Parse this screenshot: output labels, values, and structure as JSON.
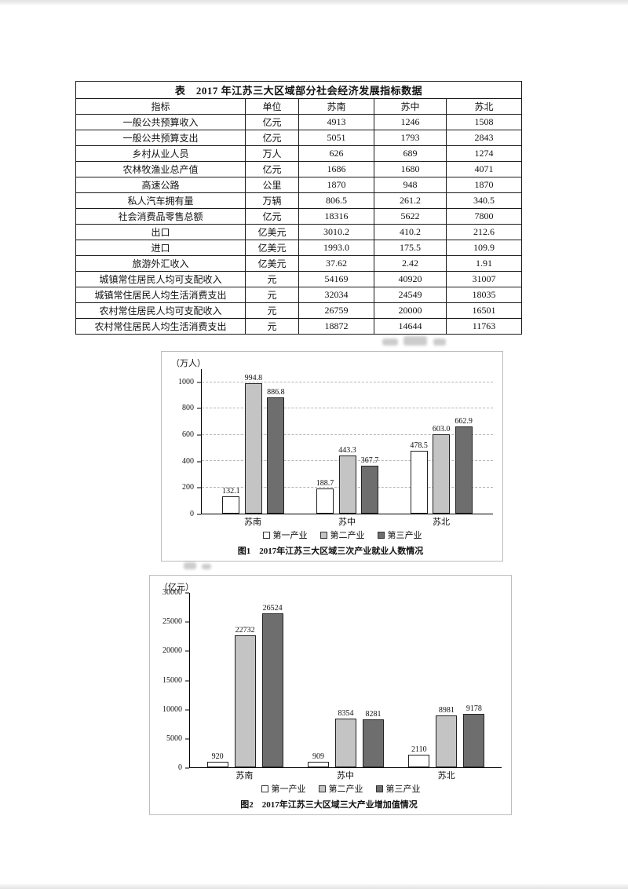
{
  "table": {
    "title": "表　2017 年江苏三大区域部分社会经济发展指标数据",
    "headers": [
      "指标",
      "单位",
      "苏南",
      "苏中",
      "苏北"
    ],
    "rows": [
      {
        "indicator": "一般公共预算收入",
        "unit": "亿元",
        "values": [
          "4913",
          "1246",
          "1508"
        ]
      },
      {
        "indicator": "一般公共预算支出",
        "unit": "亿元",
        "values": [
          "5051",
          "1793",
          "2843"
        ]
      },
      {
        "indicator": "乡村从业人员",
        "unit": "万人",
        "values": [
          "626",
          "689",
          "1274"
        ]
      },
      {
        "indicator": "农林牧渔业总产值",
        "unit": "亿元",
        "values": [
          "1686",
          "1680",
          "4071"
        ]
      },
      {
        "indicator": "高速公路",
        "unit": "公里",
        "values": [
          "1870",
          "948",
          "1870"
        ]
      },
      {
        "indicator": "私人汽车拥有量",
        "unit": "万辆",
        "values": [
          "806.5",
          "261.2",
          "340.5"
        ]
      },
      {
        "indicator": "社会消费品零售总额",
        "unit": "亿元",
        "values": [
          "18316",
          "5622",
          "7800"
        ]
      },
      {
        "indicator": "出口",
        "unit": "亿美元",
        "values": [
          "3010.2",
          "410.2",
          "212.6"
        ]
      },
      {
        "indicator": "进口",
        "unit": "亿美元",
        "values": [
          "1993.0",
          "175.5",
          "109.9"
        ]
      },
      {
        "indicator": "旅游外汇收入",
        "unit": "亿美元",
        "values": [
          "37.62",
          "2.42",
          "1.91"
        ]
      },
      {
        "indicator": "城镇常住居民人均可支配收入",
        "unit": "元",
        "values": [
          "54169",
          "40920",
          "31007"
        ]
      },
      {
        "indicator": "城镇常住居民人均生活消费支出",
        "unit": "元",
        "values": [
          "32034",
          "24549",
          "18035"
        ]
      },
      {
        "indicator": "农村常住居民人均可支配收入",
        "unit": "元",
        "values": [
          "26759",
          "20000",
          "16501"
        ]
      },
      {
        "indicator": "农村常住居民人均生活消费支出",
        "unit": "元",
        "values": [
          "18872",
          "14644",
          "11763"
        ]
      }
    ]
  },
  "chart_data": [
    {
      "type": "bar",
      "unit_label": "（万人）",
      "categories": [
        "苏南",
        "苏中",
        "苏北"
      ],
      "series": [
        {
          "name": "第一产业",
          "values": [
            "132.1",
            "188.7",
            "478.5"
          ]
        },
        {
          "name": "第二产业",
          "values": [
            "994.8",
            "443.3",
            "603.0"
          ]
        },
        {
          "name": "第三产业",
          "values": [
            "886.8",
            "367.7",
            "662.9"
          ]
        }
      ],
      "legend": [
        "第一产业",
        "第二产业",
        "第三产业"
      ],
      "colors": [
        "#ffffff",
        "#c4c4c4",
        "#6e6e6e"
      ],
      "ylim": [
        0,
        1100
      ],
      "yticks": [
        0,
        200,
        400,
        600,
        800,
        1000
      ],
      "grid": true,
      "legend_position": "bottom",
      "caption": "图1　2017年江苏三大区域三次产业就业人数情况"
    },
    {
      "type": "bar",
      "unit_label": "（亿元）",
      "categories": [
        "苏南",
        "苏中",
        "苏北"
      ],
      "series": [
        {
          "name": "第一产业",
          "values": [
            "920",
            "909",
            "2110"
          ]
        },
        {
          "name": "第二产业",
          "values": [
            "22732",
            "8354",
            "8981"
          ]
        },
        {
          "name": "第三产业",
          "values": [
            "26524",
            "8281",
            "9178"
          ]
        }
      ],
      "legend": [
        "第一产业",
        "第二产业",
        "第三产业"
      ],
      "colors": [
        "#ffffff",
        "#c4c4c4",
        "#6e6e6e"
      ],
      "ylim": [
        0,
        30000
      ],
      "yticks": [
        0,
        5000,
        10000,
        15000,
        20000,
        25000,
        30000
      ],
      "grid": false,
      "legend_position": "bottom",
      "caption": "图2　2017年江苏三大区域三大产业增加值情况"
    }
  ]
}
